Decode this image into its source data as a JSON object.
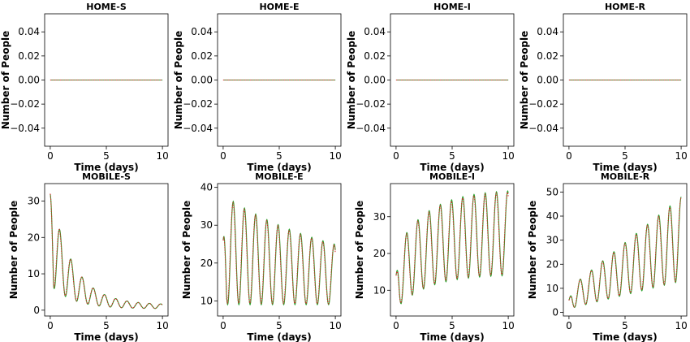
{
  "colors": {
    "sim": "#2ca02c",
    "ref": "#d62728"
  },
  "chart_data": [
    {
      "type": "line",
      "title": "HOME-S",
      "xlabel": "Time (days)",
      "ylabel": "Number of People",
      "xlim": [
        -0.5,
        10.5
      ],
      "ylim": [
        -0.055,
        0.055
      ],
      "xticks": [
        0,
        5,
        10
      ],
      "yticks": [
        -0.04,
        -0.02,
        0.0,
        0.02,
        0.04
      ],
      "yticklabels": [
        "−0.04",
        "−0.02",
        "0.00",
        "0.02",
        "0.04"
      ],
      "model": {
        "kind": "flat",
        "value": 0
      }
    },
    {
      "type": "line",
      "title": "HOME-E",
      "xlabel": "Time (days)",
      "ylabel": "Number of People",
      "xlim": [
        -0.5,
        10.5
      ],
      "ylim": [
        -0.055,
        0.055
      ],
      "xticks": [
        0,
        5,
        10
      ],
      "yticks": [
        -0.04,
        -0.02,
        0.0,
        0.02,
        0.04
      ],
      "yticklabels": [
        "−0.04",
        "−0.02",
        "0.00",
        "0.02",
        "0.04"
      ],
      "model": {
        "kind": "flat",
        "value": 0
      }
    },
    {
      "type": "line",
      "title": "HOME-I",
      "xlabel": "Time (days)",
      "ylabel": "Number of People",
      "xlim": [
        -0.5,
        10.5
      ],
      "ylim": [
        -0.055,
        0.055
      ],
      "xticks": [
        0,
        5,
        10
      ],
      "yticks": [
        -0.04,
        -0.02,
        0.0,
        0.02,
        0.04
      ],
      "yticklabels": [
        "−0.04",
        "−0.02",
        "0.00",
        "0.02",
        "0.04"
      ],
      "model": {
        "kind": "flat",
        "value": 0
      }
    },
    {
      "type": "line",
      "title": "HOME-R",
      "xlabel": "Time (days)",
      "ylabel": "Number of People",
      "xlim": [
        -0.5,
        10.5
      ],
      "ylim": [
        -0.055,
        0.055
      ],
      "xticks": [
        0,
        5,
        10
      ],
      "yticks": [
        -0.04,
        -0.02,
        0.0,
        0.02,
        0.04
      ],
      "yticklabels": [
        "−0.04",
        "−0.02",
        "0.00",
        "0.02",
        "0.04"
      ],
      "model": {
        "kind": "flat",
        "value": 0
      }
    },
    {
      "type": "line",
      "title": "MOBILE-S",
      "xlabel": "Time (days)",
      "ylabel": "Number of People",
      "xlim": [
        -0.5,
        10.5
      ],
      "ylim": [
        -1.6,
        34.8
      ],
      "xticks": [
        0,
        5,
        10
      ],
      "yticks": [
        0,
        10,
        20,
        30
      ],
      "yticklabels": [
        "0",
        "10",
        "20",
        "30"
      ],
      "model": {
        "kind": "oscillation",
        "start": 32,
        "min_start": 7,
        "min_end": 0.4,
        "max_end": 1.5,
        "peak_start": 33,
        "decay": 0.5,
        "period": 1,
        "first_peak": 0.85,
        "days": 10
      }
    },
    {
      "type": "line",
      "title": "MOBILE-E",
      "xlabel": "Time (days)",
      "ylabel": "Number of People",
      "xlim": [
        -0.5,
        10.5
      ],
      "ylim": [
        6,
        41
      ],
      "xticks": [
        0,
        5,
        10
      ],
      "yticks": [
        10,
        20,
        30,
        40
      ],
      "yticklabels": [
        "10",
        "20",
        "30",
        "40"
      ],
      "model": {
        "kind": "oscillation",
        "start": 26,
        "min_start": 9,
        "min_end": 9,
        "max_end": 16,
        "peak_start": 38,
        "decay": 0.09,
        "period": 1,
        "first_peak": 0.9,
        "days": 10
      }
    },
    {
      "type": "line",
      "title": "MOBILE-I",
      "xlabel": "Time (days)",
      "ylabel": "Number of People",
      "xlim": [
        -0.5,
        10.5
      ],
      "ylim": [
        3,
        39
      ],
      "xticks": [
        0,
        5,
        10
      ],
      "yticks": [
        10,
        20,
        30
      ],
      "yticklabels": [
        "10",
        "20",
        "30"
      ],
      "model": {
        "kind": "growth",
        "start": 14,
        "min_start": 5,
        "min_end": 14,
        "peak_start": 21,
        "peak_end": 37,
        "rate": 0.35,
        "period": 1,
        "first_peak": 0.95,
        "days": 10
      }
    },
    {
      "type": "line",
      "title": "MOBILE-R",
      "xlabel": "Time (days)",
      "ylabel": "Number of People",
      "xlim": [
        -0.5,
        10.5
      ],
      "ylim": [
        -1.5,
        53.5
      ],
      "xticks": [
        0,
        5,
        10
      ],
      "yticks": [
        0,
        10,
        20,
        30,
        40,
        50
      ],
      "yticklabels": [
        "0",
        "10",
        "20",
        "30",
        "40",
        "50"
      ],
      "model": {
        "kind": "linear",
        "start": 5,
        "min_start": 1.5,
        "min_end": 13,
        "peak_start": 10,
        "peak_end": 48,
        "period": 1,
        "first_peak": 1.0,
        "days": 10
      }
    }
  ]
}
